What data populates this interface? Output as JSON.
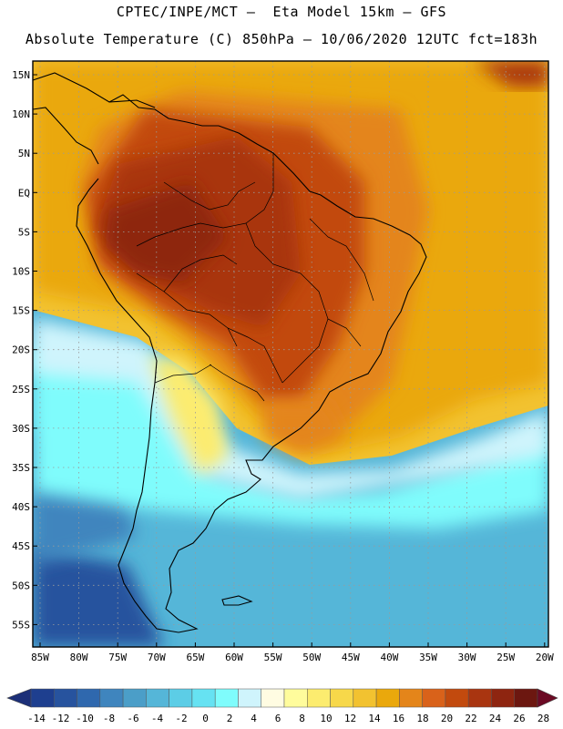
{
  "title": {
    "line1": "CPTEC/INPE/MCT –  Eta Model 15km – GFS",
    "line2": "Absolute Temperature (C) 850hPa – 10/06/2020 12UTC fct=183h"
  },
  "map": {
    "lat_labels": [
      "15N",
      "10N",
      "5N",
      "EQ",
      "5S",
      "10S",
      "15S",
      "20S",
      "25S",
      "30S",
      "35S",
      "40S",
      "45S",
      "50S",
      "55S"
    ],
    "lon_labels": [
      "85W",
      "80W",
      "75W",
      "70W",
      "65W",
      "60W",
      "55W",
      "50W",
      "45W",
      "40W",
      "35W",
      "30W",
      "25W",
      "20W"
    ]
  },
  "colorbar": {
    "labels": [
      "-14",
      "-12",
      "-10",
      "-8",
      "-6",
      "-4",
      "-2",
      "0",
      "2",
      "4",
      "6",
      "8",
      "10",
      "12",
      "14",
      "16",
      "18",
      "20",
      "22",
      "24",
      "26",
      "28"
    ],
    "colors": [
      "#1e3f8f",
      "#27539e",
      "#2f68ae",
      "#3f85be",
      "#4b9ec8",
      "#55b6d8",
      "#5ccde6",
      "#66e2f2",
      "#7ffcfc",
      "#cff4fc",
      "#fffce2",
      "#fffc9c",
      "#fcec6f",
      "#f7d84a",
      "#f2c230",
      "#eaa80c",
      "#e4851a",
      "#d9621a",
      "#c24a0e",
      "#a93510",
      "#8e2510",
      "#6c1710"
    ],
    "end_low": "#1c2f78",
    "end_high": "#6b0a24"
  }
}
